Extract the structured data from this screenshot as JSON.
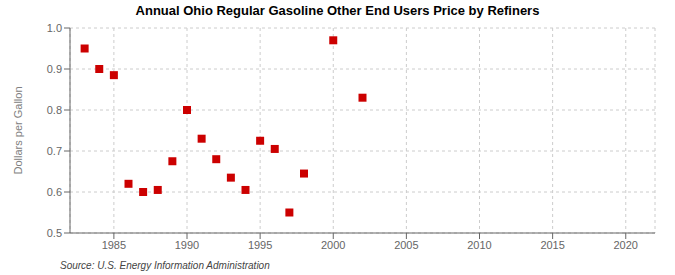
{
  "chart_data": {
    "type": "scatter",
    "title": "Annual Ohio Regular Gasoline Other End Users Price by Refiners",
    "ylabel": "Dollars per Gallon",
    "annotations": [
      "Source: U.S. Energy Information Administration"
    ],
    "x": [
      1983,
      1984,
      1985,
      1986,
      1987,
      1988,
      1989,
      1990,
      1991,
      1992,
      1993,
      1994,
      1995,
      1996,
      1997,
      1998,
      2000,
      2002
    ],
    "values": [
      0.95,
      0.9,
      0.885,
      0.62,
      0.6,
      0.605,
      0.675,
      0.8,
      0.73,
      0.68,
      0.635,
      0.605,
      0.725,
      0.705,
      0.55,
      0.645,
      0.97,
      0.83
    ],
    "color": "#cc0000",
    "marker": "square",
    "xlim": [
      1982,
      2022
    ],
    "ylim": [
      0.5,
      1.0
    ],
    "xticks": [
      1985,
      1990,
      1995,
      2000,
      2005,
      2010,
      2015,
      2020
    ],
    "yticks": [
      0.5,
      0.6,
      0.7,
      0.8,
      0.9,
      {
        "value": 1.0,
        "label": "1.0"
      }
    ],
    "grid": true
  }
}
